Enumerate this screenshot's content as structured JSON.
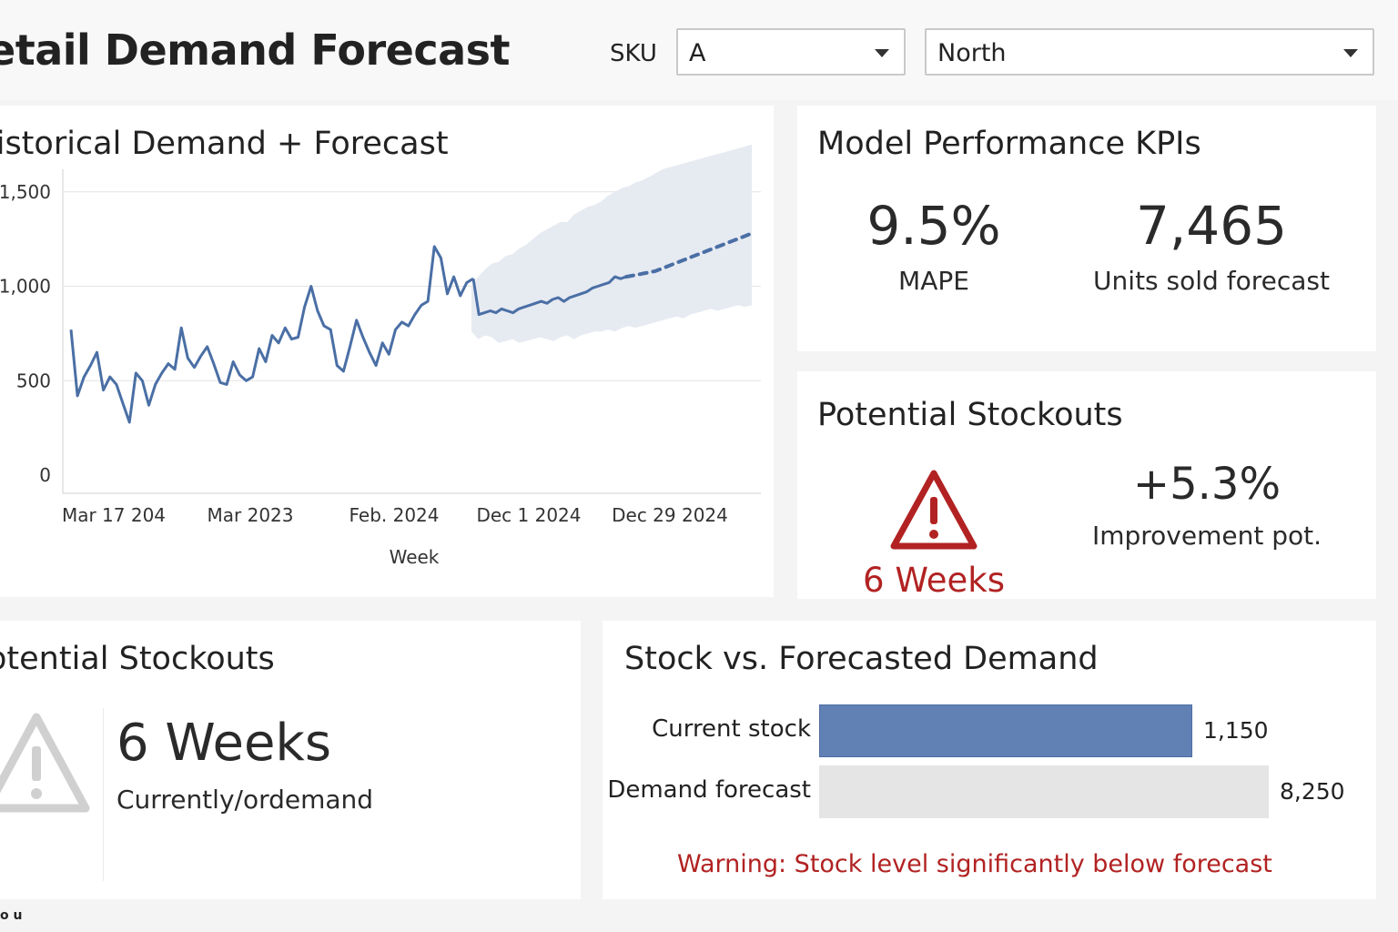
{
  "header": {
    "title": "etail Demand Forecast",
    "sku_label": "SKU",
    "sku_value": "A",
    "region_value": "North"
  },
  "history_card": {
    "title": "listorical Demand + Forecast"
  },
  "chart_data": {
    "type": "line",
    "xlabel": "Week",
    "ylabel": "",
    "x_tick_labels": [
      "Mar 17 204",
      "Mar 2023",
      "Feb. 2024",
      "Dec 1 2024",
      "Dec 29 2024"
    ],
    "y_tick_labels": [
      "0",
      "500",
      "1,000",
      "1,500"
    ],
    "y_ticks": [
      0,
      500,
      1000,
      1500
    ],
    "ylim": [
      0,
      1700
    ],
    "grid": true,
    "colors": {
      "line": "#4a6fa5",
      "band": "#e6eaf1",
      "grid": "#e4e4e4"
    },
    "historical": [
      770,
      420,
      520,
      580,
      650,
      450,
      520,
      480,
      380,
      280,
      540,
      500,
      370,
      480,
      540,
      590,
      560,
      780,
      620,
      570,
      630,
      680,
      590,
      490,
      480,
      600,
      530,
      500,
      520,
      670,
      600,
      740,
      700,
      780,
      720,
      730,
      890,
      1000,
      870,
      790,
      770,
      580,
      550,
      680,
      820,
      730,
      650,
      580,
      700,
      640,
      770,
      810,
      790,
      850,
      900,
      920,
      1210,
      1150,
      960,
      1050,
      950,
      1020,
      1040
    ],
    "forecast_solid": [
      1040,
      850,
      860,
      870,
      860,
      880,
      870,
      860,
      880,
      890,
      900,
      910,
      920,
      910,
      930,
      940,
      920,
      940,
      950,
      960,
      970,
      990,
      1000,
      1010,
      1020,
      1050,
      1040,
      1050
    ],
    "forecast_dashed": [
      1050,
      1060,
      1070,
      1080,
      1100,
      1120,
      1140,
      1160,
      1180,
      1200,
      1220,
      1240,
      1260,
      1280
    ],
    "band_upper": [
      1000,
      1050,
      1090,
      1120,
      1130,
      1160,
      1170,
      1200,
      1220,
      1250,
      1280,
      1300,
      1320,
      1340,
      1340,
      1380,
      1400,
      1420,
      1430,
      1450,
      1480,
      1500,
      1520,
      1530,
      1550,
      1560,
      1580,
      1600,
      1620,
      1630,
      1640,
      1650,
      1660,
      1670,
      1680,
      1690,
      1700,
      1710,
      1720,
      1730,
      1740,
      1750
    ],
    "band_lower": [
      760,
      720,
      740,
      730,
      700,
      710,
      720,
      700,
      710,
      720,
      730,
      720,
      710,
      730,
      740,
      720,
      740,
      750,
      760,
      760,
      770,
      760,
      780,
      790,
      780,
      790,
      800,
      810,
      820,
      830,
      840,
      830,
      850,
      860,
      870,
      880,
      870,
      880,
      890,
      900,
      890,
      900
    ]
  },
  "kpi_card": {
    "title": "Model Performance KPIs",
    "mape_value": "9.5%",
    "mape_label": "MAPE",
    "units_value": "7,465",
    "units_label": "Units sold forecast"
  },
  "stockouts_card": {
    "title": "Potential Stockouts",
    "weeks": "6 Weeks",
    "improvement_value": "+5.3%",
    "improvement_label": "Improvement pot.",
    "alert_color": "#b22222"
  },
  "stockouts_card_2": {
    "title": "otential Stockouts",
    "weeks": "6 Weeks",
    "subtitle": "Currently/ordemand"
  },
  "stock_card": {
    "title": "Stock vs. Forecasted Demand",
    "rows": [
      {
        "label": "Current stock",
        "value": 1150,
        "value_text": "1,150",
        "color": "#6180b4"
      },
      {
        "label": "Demand forecast",
        "value": 8250,
        "value_text": "8,250",
        "color": "#e5e5e5"
      }
    ],
    "warning": "Warning: Stock level significantly below forecast",
    "warning_color": "#b22222"
  },
  "footer": {
    "text": "o u"
  }
}
